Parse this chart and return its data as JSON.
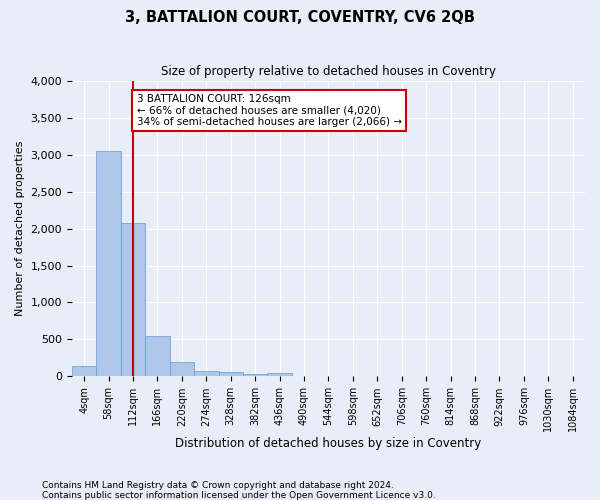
{
  "title": "3, BATTALION COURT, COVENTRY, CV6 2QB",
  "subtitle": "Size of property relative to detached houses in Coventry",
  "xlabel": "Distribution of detached houses by size in Coventry",
  "ylabel": "Number of detached properties",
  "bar_color": "#aec6e8",
  "bar_edge_color": "#5a9fd4",
  "background_color": "#e8eef7",
  "grid_color": "#ffffff",
  "bin_labels": [
    "4sqm",
    "58sqm",
    "112sqm",
    "166sqm",
    "220sqm",
    "274sqm",
    "328sqm",
    "382sqm",
    "436sqm",
    "490sqm",
    "544sqm",
    "598sqm",
    "652sqm",
    "706sqm",
    "760sqm",
    "814sqm",
    "868sqm",
    "922sqm",
    "976sqm",
    "1030sqm",
    "1084sqm"
  ],
  "bar_values": [
    140,
    3050,
    2080,
    550,
    200,
    80,
    60,
    40,
    50,
    0,
    0,
    0,
    0,
    0,
    0,
    0,
    0,
    0,
    0,
    0,
    0
  ],
  "ylim": [
    0,
    4000
  ],
  "yticks": [
    0,
    500,
    1000,
    1500,
    2000,
    2500,
    3000,
    3500,
    4000
  ],
  "property_line_x": 2.0,
  "annotation_text": "3 BATTALION COURT: 126sqm\n← 66% of detached houses are smaller (4,020)\n34% of semi-detached houses are larger (2,066) →",
  "annotation_box_color": "#ffffff",
  "annotation_box_edge": "#cc0000",
  "red_line_color": "#cc0000",
  "footnote1": "Contains HM Land Registry data © Crown copyright and database right 2024.",
  "footnote2": "Contains public sector information licensed under the Open Government Licence v3.0."
}
